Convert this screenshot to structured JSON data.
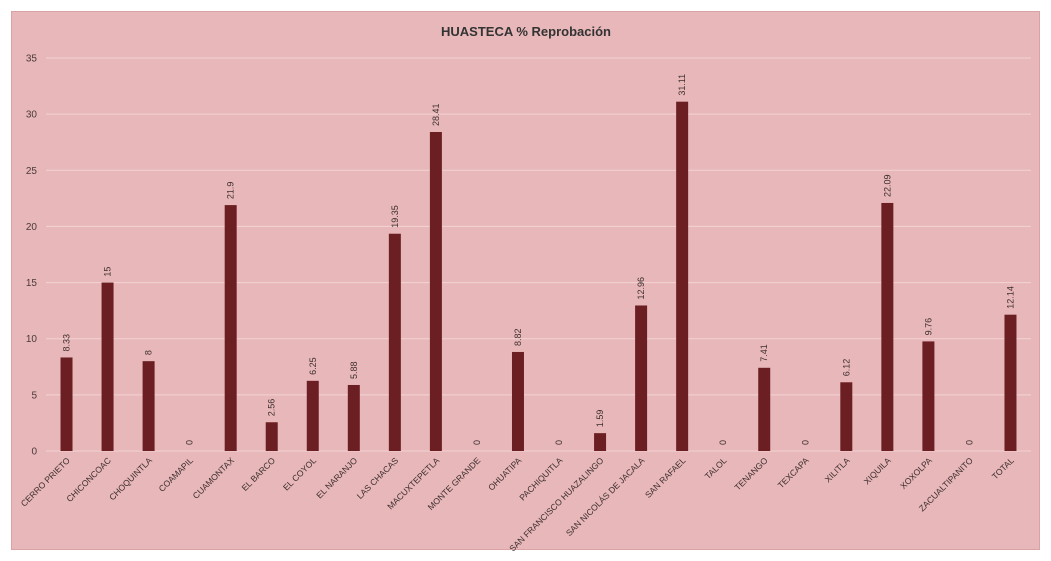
{
  "chart_data": {
    "type": "bar",
    "title": "HUASTECA % Reprobación",
    "xlabel": "",
    "ylabel": "",
    "ylim": [
      0,
      35
    ],
    "yticks": [
      0,
      5,
      10,
      15,
      20,
      25,
      30,
      35
    ],
    "grid": true,
    "legend": "none",
    "colors": {
      "background": "#e8b7b9",
      "bar": "#6b1f23",
      "grid": "#f2d3d4"
    },
    "categories": [
      "CERRO PRIETO",
      "CHICONCOAC",
      "CHOQUINTLA",
      "COAMAPIL",
      "CUAMONTAX",
      "EL BARCO",
      "EL COYOL",
      "EL NARANJO",
      "LAS CHACAS",
      "MACUXTEPETLA",
      "MONTE GRANDE",
      "OHUATIPA",
      "PACHIQUITLA",
      "SAN FRANCISCO HUAZALINGO",
      "SAN NICOLÁS DE JACALA",
      "SAN RAFAEL",
      "TALOL",
      "TENANGO",
      "TEXCAPA",
      "XILITLA",
      "XIQUILA",
      "XOXOLPA",
      "ZACUALTIPANITO",
      "TOTAL"
    ],
    "values": [
      8.33,
      15,
      8,
      0,
      21.9,
      2.56,
      6.25,
      5.88,
      19.35,
      28.41,
      0,
      8.82,
      0,
      1.59,
      12.96,
      31.11,
      0,
      7.41,
      0,
      6.12,
      22.09,
      9.76,
      0,
      12.14
    ],
    "data_labels": [
      "8.33",
      "15",
      "8",
      "0",
      "21.9",
      "2.56",
      "6.25",
      "5.88",
      "19.35",
      "28.41",
      "0",
      "8.82",
      "0",
      "1.59",
      "12.96",
      "31.11",
      "0",
      "7.41",
      "0",
      "6.12",
      "22.09",
      "9.76",
      "0",
      "12.14"
    ]
  }
}
